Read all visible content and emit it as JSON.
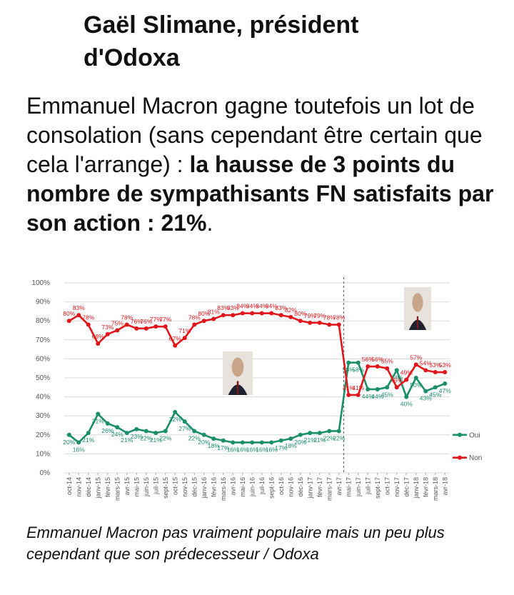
{
  "article": {
    "author_heading": "Gaël Slimane, président d'Odoxa",
    "paragraph": {
      "text_plain": "Emmanuel Macron gagne toutefois un lot de consolation (sans cependant être certain que cela l'arrange) : ",
      "text_bold": "la hausse de 3 points du nombre de sympathisants FN satisfaits par son action : 21%",
      "text_end": "."
    },
    "caption": "Emmanuel Macron pas vraiment populaire mais un peu plus cependant que son prédecesseur / Odoxa"
  },
  "photos": {
    "hollande": "president-hollande-photo",
    "macron": "president-macron-photo"
  },
  "colors": {
    "oui": "#1a8f68",
    "non": "#e0161b",
    "grid": "#d9d9d9",
    "axis_text": "#555555",
    "divider": "#666666"
  },
  "chart_data": {
    "type": "line",
    "title": "",
    "xlabel": "",
    "ylabel": "",
    "ylim": [
      0,
      100
    ],
    "yticks": [
      "0%",
      "10%",
      "20%",
      "30%",
      "40%",
      "50%",
      "60%",
      "70%",
      "80%",
      "90%",
      "100%"
    ],
    "categories": [
      "oct-14",
      "nov-14",
      "déc-14",
      "janv-15",
      "févr-15",
      "mars-15",
      "avr-15",
      "mai-15",
      "juin-15",
      "juil-15",
      "sept-15",
      "oct-15",
      "nov-15",
      "déc-15",
      "janv-16",
      "févr-16",
      "mars-16",
      "avr-16",
      "mai-16",
      "juin-16",
      "juil-16",
      "sept-16",
      "oct-16",
      "nov-16",
      "déc-16",
      "janv-17",
      "févr-17",
      "mars-17",
      "avr-17",
      "mai-17",
      "juin-17",
      "juil-17",
      "sept-17",
      "oct-17",
      "nov-17",
      "déc-17",
      "janv-18",
      "févr-18",
      "mars-18",
      "avr-18"
    ],
    "tick_labels": [
      "oct-14",
      "nov-14",
      "déc-14",
      "janv-15",
      "févr-15",
      "mars-15",
      "avr-15",
      "mai-15",
      "juin-15",
      "juil-15",
      "sept-15",
      "oct-15",
      "nov-15",
      "déc-15",
      "janv-16",
      "févr-16",
      "mars-16",
      "avr-16",
      "mai-16",
      "juin-16",
      "juil-16",
      "sept-16",
      "oct-16",
      "nov-16",
      "déc-16",
      "janv-17",
      "févr-17",
      "mars-17",
      "avr-17",
      "mai-17",
      "juin-17",
      "juil-17",
      "sept-17",
      "oct-17",
      "nov-17",
      "déc-17",
      "janv-18",
      "févr-18",
      "mars-18",
      "avr-18"
    ],
    "series": [
      {
        "name": "Oui",
        "values": [
          20,
          16,
          21,
          31,
          26,
          24,
          21,
          23,
          22,
          21,
          22,
          32,
          27,
          22,
          20,
          18,
          17,
          16,
          16,
          16,
          16,
          16,
          17,
          18,
          20,
          21,
          21,
          22,
          22,
          58,
          58,
          44,
          44,
          45,
          54,
          40,
          50,
          43,
          45,
          47
        ],
        "labels": [
          "20%",
          "16%",
          "21%",
          "31%",
          "26%",
          "24%",
          "21%",
          "23%",
          "22%",
          "21%",
          "22%",
          "32%",
          "27%",
          "22%",
          "20%",
          "18%",
          "17%",
          "16%",
          "16%",
          "16%",
          "16%",
          "16%",
          "17%",
          "18%",
          "20%",
          "21%",
          "21%",
          "22%",
          "22%",
          "58%",
          "58%",
          "44%",
          "44%",
          "45%",
          "54%",
          "40%",
          "50%",
          "43%",
          "45%",
          "47%"
        ]
      },
      {
        "name": "Non",
        "values": [
          80,
          83,
          78,
          68,
          73,
          75,
          78,
          76,
          76,
          77,
          77,
          67,
          71,
          78,
          80,
          81,
          83,
          83,
          84,
          84,
          84,
          84,
          83,
          82,
          80,
          79,
          79,
          78,
          78,
          41,
          41,
          56,
          56,
          55,
          45,
          49,
          57,
          54,
          53,
          53
        ],
        "labels": [
          "80%",
          "83%",
          "78%",
          "68%",
          "73%",
          "75%",
          "78%",
          "76%",
          "76%",
          "77%",
          "77%",
          "67%",
          "71%",
          "78%",
          "80%",
          "81%",
          "83%",
          "83%",
          "84%",
          "84%",
          "84%",
          "84%",
          "83%",
          "82%",
          "80%",
          "79%",
          "79%",
          "78%",
          "78%",
          "41%",
          "41%",
          "56%",
          "56%",
          "55%",
          "45%",
          "49%",
          "57%",
          "54%",
          "53%",
          "53%"
        ]
      }
    ],
    "legend": [
      "Oui",
      "Non"
    ],
    "legend_position": "right",
    "annotations": [
      "vertical dashed line between avr-17 and mai-17 (change of president)"
    ]
  }
}
